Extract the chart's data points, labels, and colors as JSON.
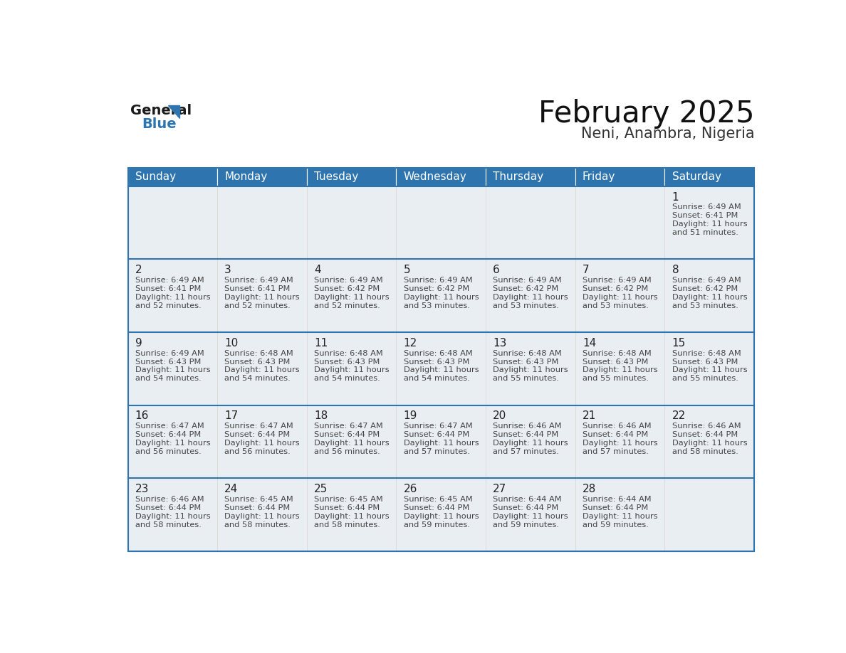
{
  "title": "February 2025",
  "subtitle": "Neni, Anambra, Nigeria",
  "days_of_week": [
    "Sunday",
    "Monday",
    "Tuesday",
    "Wednesday",
    "Thursday",
    "Friday",
    "Saturday"
  ],
  "header_bg": "#2e75b0",
  "header_text": "#ffffff",
  "cell_bg": "#e9eef3",
  "border_color": "#2e75b0",
  "sep_line_color": "#2e75b0",
  "day_num_color": "#222222",
  "info_text_color": "#444444",
  "title_color": "#111111",
  "subtitle_color": "#333333",
  "logo_general_color": "#1a1a1a",
  "logo_blue_color": "#2e75b0",
  "calendar": [
    [
      null,
      null,
      null,
      null,
      null,
      null,
      1
    ],
    [
      2,
      3,
      4,
      5,
      6,
      7,
      8
    ],
    [
      9,
      10,
      11,
      12,
      13,
      14,
      15
    ],
    [
      16,
      17,
      18,
      19,
      20,
      21,
      22
    ],
    [
      23,
      24,
      25,
      26,
      27,
      28,
      null
    ]
  ],
  "cell_data": {
    "1": {
      "sunrise": "6:49 AM",
      "sunset": "6:41 PM",
      "daylight": "11 hours and 51 minutes."
    },
    "2": {
      "sunrise": "6:49 AM",
      "sunset": "6:41 PM",
      "daylight": "11 hours and 52 minutes."
    },
    "3": {
      "sunrise": "6:49 AM",
      "sunset": "6:41 PM",
      "daylight": "11 hours and 52 minutes."
    },
    "4": {
      "sunrise": "6:49 AM",
      "sunset": "6:42 PM",
      "daylight": "11 hours and 52 minutes."
    },
    "5": {
      "sunrise": "6:49 AM",
      "sunset": "6:42 PM",
      "daylight": "11 hours and 53 minutes."
    },
    "6": {
      "sunrise": "6:49 AM",
      "sunset": "6:42 PM",
      "daylight": "11 hours and 53 minutes."
    },
    "7": {
      "sunrise": "6:49 AM",
      "sunset": "6:42 PM",
      "daylight": "11 hours and 53 minutes."
    },
    "8": {
      "sunrise": "6:49 AM",
      "sunset": "6:42 PM",
      "daylight": "11 hours and 53 minutes."
    },
    "9": {
      "sunrise": "6:49 AM",
      "sunset": "6:43 PM",
      "daylight": "11 hours and 54 minutes."
    },
    "10": {
      "sunrise": "6:48 AM",
      "sunset": "6:43 PM",
      "daylight": "11 hours and 54 minutes."
    },
    "11": {
      "sunrise": "6:48 AM",
      "sunset": "6:43 PM",
      "daylight": "11 hours and 54 minutes."
    },
    "12": {
      "sunrise": "6:48 AM",
      "sunset": "6:43 PM",
      "daylight": "11 hours and 54 minutes."
    },
    "13": {
      "sunrise": "6:48 AM",
      "sunset": "6:43 PM",
      "daylight": "11 hours and 55 minutes."
    },
    "14": {
      "sunrise": "6:48 AM",
      "sunset": "6:43 PM",
      "daylight": "11 hours and 55 minutes."
    },
    "15": {
      "sunrise": "6:48 AM",
      "sunset": "6:43 PM",
      "daylight": "11 hours and 55 minutes."
    },
    "16": {
      "sunrise": "6:47 AM",
      "sunset": "6:44 PM",
      "daylight": "11 hours and 56 minutes."
    },
    "17": {
      "sunrise": "6:47 AM",
      "sunset": "6:44 PM",
      "daylight": "11 hours and 56 minutes."
    },
    "18": {
      "sunrise": "6:47 AM",
      "sunset": "6:44 PM",
      "daylight": "11 hours and 56 minutes."
    },
    "19": {
      "sunrise": "6:47 AM",
      "sunset": "6:44 PM",
      "daylight": "11 hours and 57 minutes."
    },
    "20": {
      "sunrise": "6:46 AM",
      "sunset": "6:44 PM",
      "daylight": "11 hours and 57 minutes."
    },
    "21": {
      "sunrise": "6:46 AM",
      "sunset": "6:44 PM",
      "daylight": "11 hours and 57 minutes."
    },
    "22": {
      "sunrise": "6:46 AM",
      "sunset": "6:44 PM",
      "daylight": "11 hours and 58 minutes."
    },
    "23": {
      "sunrise": "6:46 AM",
      "sunset": "6:44 PM",
      "daylight": "11 hours and 58 minutes."
    },
    "24": {
      "sunrise": "6:45 AM",
      "sunset": "6:44 PM",
      "daylight": "11 hours and 58 minutes."
    },
    "25": {
      "sunrise": "6:45 AM",
      "sunset": "6:44 PM",
      "daylight": "11 hours and 58 minutes."
    },
    "26": {
      "sunrise": "6:45 AM",
      "sunset": "6:44 PM",
      "daylight": "11 hours and 59 minutes."
    },
    "27": {
      "sunrise": "6:44 AM",
      "sunset": "6:44 PM",
      "daylight": "11 hours and 59 minutes."
    },
    "28": {
      "sunrise": "6:44 AM",
      "sunset": "6:44 PM",
      "daylight": "11 hours and 59 minutes."
    }
  }
}
